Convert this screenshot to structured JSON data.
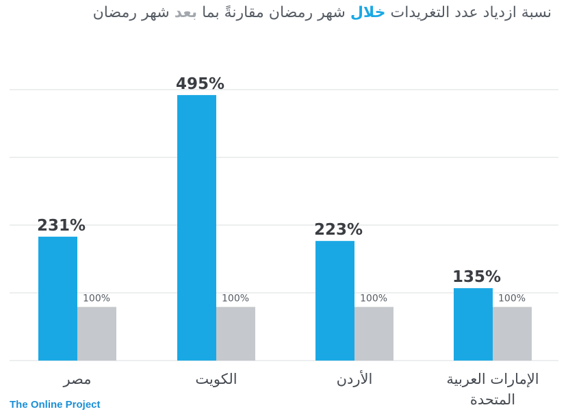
{
  "title": {
    "part1": "نسبة ازدياد عدد التغريدات",
    "during": "خلال",
    "part2": "شهر رمضان مقارنةً بما",
    "after": "بعد",
    "part3": "شهر رمضان"
  },
  "brand": "The Online Project",
  "colors": {
    "during": "#1aa8e4",
    "after": "#c5c8cc",
    "grid": "#d9dcdf",
    "text": "#3a3d42"
  },
  "chart_data": {
    "type": "bar",
    "categories": [
      "مصر",
      "الكويت",
      "الأردن",
      "الإمارات العربية|المتحدة"
    ],
    "series": [
      {
        "values": [
          231,
          495,
          223,
          135
        ],
        "labels": [
          "231%",
          "495%",
          "223%",
          "135%"
        ]
      },
      {
        "values": [
          100,
          100,
          100,
          100
        ],
        "labels": [
          "100%",
          "100%",
          "100%",
          "100%"
        ]
      }
    ],
    "ylim": [
      0,
      500
    ],
    "grid": true
  }
}
